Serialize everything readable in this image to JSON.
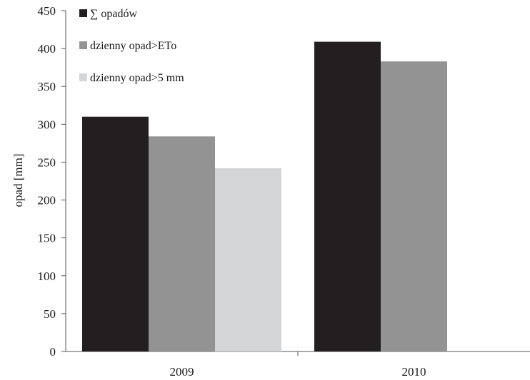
{
  "chart_data": {
    "type": "bar",
    "title": "",
    "xlabel": "",
    "ylabel": "opad [mm]",
    "ylim": [
      0,
      450
    ],
    "yticks": [
      0,
      50,
      100,
      150,
      200,
      250,
      300,
      350,
      400,
      450
    ],
    "categories": [
      "2009",
      "2010"
    ],
    "series": [
      {
        "name": "∑ opadów",
        "color": "#231f20",
        "values": [
          310,
          409
        ]
      },
      {
        "name": "dzienny opad>ETo",
        "color": "#939393",
        "values": [
          284,
          383
        ]
      },
      {
        "name": "dzienny opad>5 mm",
        "color": "#d4d5d7",
        "values": [
          242,
          null
        ]
      }
    ],
    "grid": false,
    "legend_position": "top-left"
  }
}
